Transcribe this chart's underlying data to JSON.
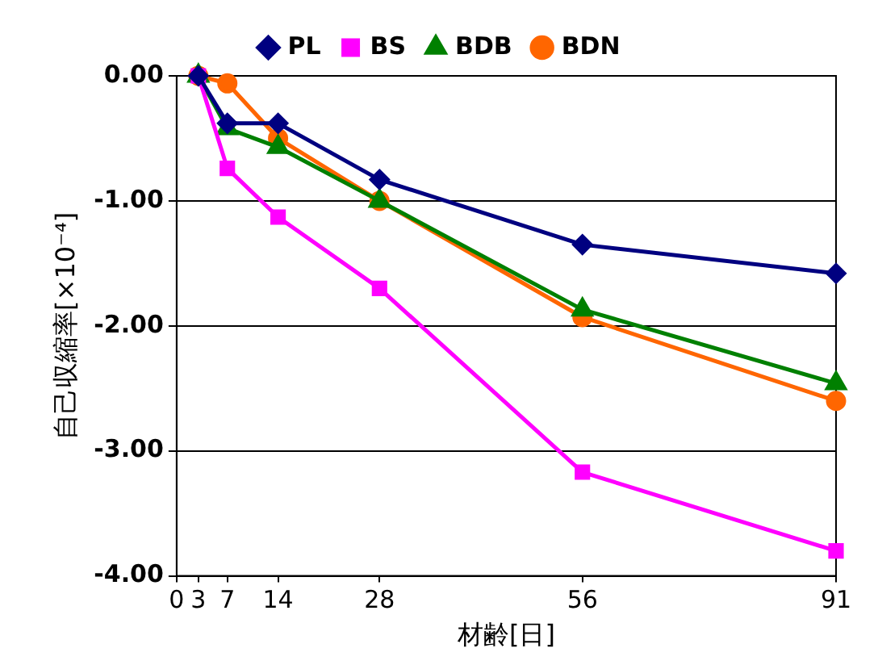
{
  "chart_data": {
    "type": "line",
    "xlabel": "材齢[日]",
    "ylabel": "自己収縮率[×10⁻⁴]",
    "xlim": [
      0,
      91
    ],
    "xticks": [
      0,
      3,
      7,
      14,
      28,
      56,
      91
    ],
    "ylim": [
      -4,
      0
    ],
    "yticks": [
      {
        "value": 0,
        "label": "0.00"
      },
      {
        "value": -1,
        "label": "-1.00"
      },
      {
        "value": -2,
        "label": "-2.00"
      },
      {
        "value": -3,
        "label": "-3.00"
      },
      {
        "value": -4,
        "label": "-4.00"
      }
    ],
    "grid": "y",
    "legend": "top",
    "line_style": "solid",
    "x": [
      3,
      7,
      14,
      28,
      56,
      91
    ],
    "series": [
      {
        "name": "PL",
        "color": "#000080",
        "marker": "diamond",
        "values": [
          0,
          -0.38,
          -0.38,
          -0.83,
          -1.35,
          -1.58
        ]
      },
      {
        "name": "BS",
        "color": "#ff00ff",
        "marker": "square",
        "values": [
          0,
          -0.74,
          -1.13,
          -1.7,
          -3.17,
          -3.8
        ]
      },
      {
        "name": "BDB",
        "color": "#008000",
        "marker": "triangle",
        "values": [
          0,
          -0.42,
          -0.57,
          -1.0,
          -1.87,
          -2.46
        ]
      },
      {
        "name": "BDN",
        "color": "#ff6600",
        "marker": "circle",
        "values": [
          0,
          -0.06,
          -0.5,
          -1.0,
          -1.93,
          -2.6
        ]
      }
    ]
  }
}
